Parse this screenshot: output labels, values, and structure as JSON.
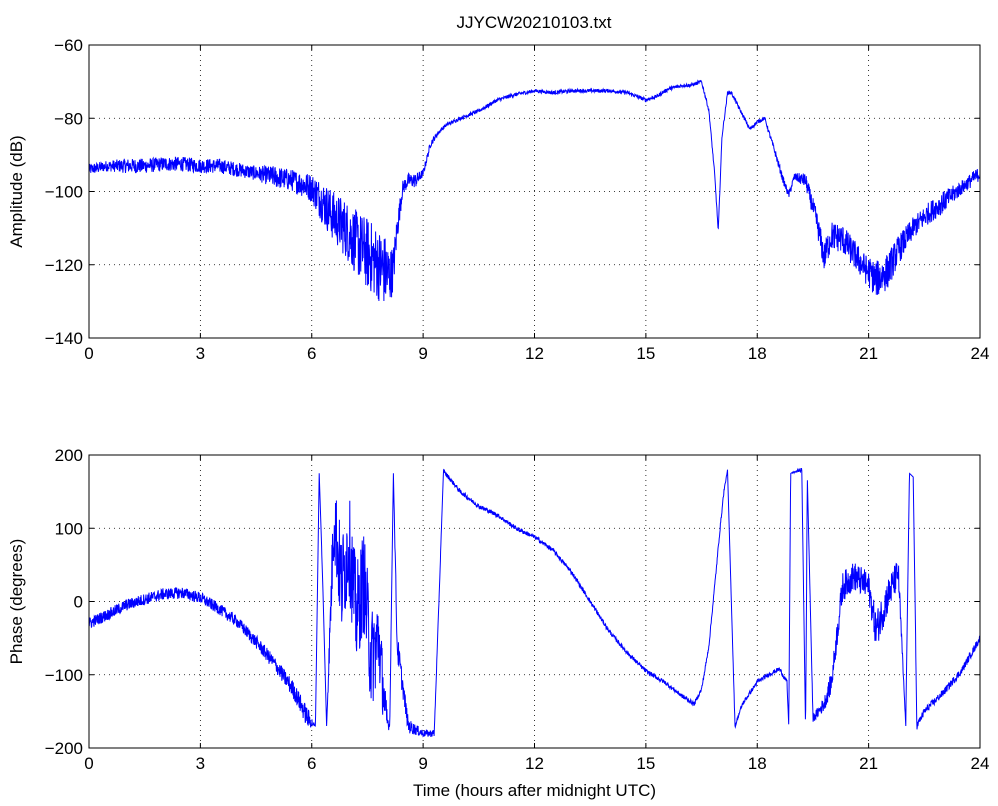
{
  "title": "JJYCW20210103.txt",
  "line_color": "#0000ff",
  "chart_data": [
    {
      "type": "line",
      "title": "JJYCW20210103.txt",
      "xlabel": "",
      "ylabel": "Amplitude (dB)",
      "xlim": [
        0,
        24
      ],
      "ylim": [
        -140,
        -60
      ],
      "xticks": [
        0,
        3,
        6,
        9,
        12,
        15,
        18,
        21,
        24
      ],
      "yticks": [
        -140,
        -120,
        -100,
        -80,
        -60
      ],
      "grid": true,
      "series": [
        {
          "x": [
            0,
            0.5,
            1,
            1.5,
            2,
            2.5,
            3,
            3.5,
            4,
            4.5,
            5,
            5.5,
            6,
            6.3,
            6.6,
            6.9,
            7.2,
            7.5,
            7.8,
            8.0,
            8.1,
            8.2,
            8.3,
            8.45,
            8.6,
            8.8,
            9.0,
            9.2,
            9.4,
            9.6,
            10,
            10.5,
            11,
            11.5,
            12,
            12.5,
            13,
            13.5,
            14,
            14.5,
            15,
            15.3,
            15.6,
            16,
            16.2,
            16.5,
            16.7,
            16.85,
            16.95,
            17.05,
            17.2,
            17.3,
            17.5,
            17.8,
            18,
            18.2,
            18.5,
            18.7,
            18.85,
            19.0,
            19.3,
            19.6,
            19.8,
            20.0,
            20.3,
            20.6,
            20.9,
            21.2,
            21.5,
            21.8,
            22.2,
            22.6,
            23.0,
            23.5,
            24
          ],
          "y": [
            -94,
            -93,
            -93,
            -93,
            -92.5,
            -92.5,
            -93,
            -93,
            -94,
            -95,
            -96,
            -97,
            -99,
            -103,
            -107,
            -110,
            -114,
            -117,
            -120,
            -122,
            -123,
            -121,
            -110,
            -99,
            -97,
            -97,
            -95,
            -87,
            -84,
            -82,
            -80,
            -78,
            -75,
            -73.5,
            -72.5,
            -73,
            -72.5,
            -72.5,
            -72.5,
            -73,
            -75,
            -74,
            -72,
            -71,
            -71,
            -70,
            -78,
            -95,
            -111,
            -85,
            -73,
            -73,
            -77,
            -83,
            -81,
            -80,
            -90,
            -97,
            -101,
            -96,
            -97,
            -108,
            -118,
            -112,
            -113,
            -117,
            -121,
            -124,
            -122,
            -116,
            -110,
            -106,
            -103,
            -99,
            -95
          ],
          "noise": [
            1.5,
            1.5,
            2,
            2,
            2,
            2,
            2,
            2,
            2,
            2,
            3,
            3,
            4,
            6,
            7,
            8,
            9,
            10,
            10,
            10,
            8,
            6,
            4,
            2,
            2,
            2,
            1,
            1,
            0.5,
            0.5,
            0.5,
            0.5,
            0.5,
            0.5,
            0.5,
            0.5,
            0.5,
            0.5,
            0.5,
            0.5,
            0.5,
            0.5,
            0.5,
            0.5,
            0.5,
            0.5,
            0.5,
            0.5,
            0.5,
            0.5,
            0.5,
            0.5,
            0.5,
            0.5,
            0.5,
            0.5,
            1,
            1,
            1,
            1,
            2,
            3,
            4,
            4,
            4,
            4,
            4,
            5,
            5,
            4,
            3,
            3,
            3,
            2,
            2
          ]
        }
      ]
    },
    {
      "type": "line",
      "title": "",
      "xlabel": "Time (hours after midnight UTC)",
      "ylabel": "Phase (degrees)",
      "xlim": [
        0,
        24
      ],
      "ylim": [
        -200,
        200
      ],
      "xticks": [
        0,
        3,
        6,
        9,
        12,
        15,
        18,
        21,
        24
      ],
      "yticks": [
        -200,
        -100,
        0,
        100,
        200
      ],
      "grid": true,
      "series": [
        {
          "x": [
            0,
            0.5,
            1,
            1.5,
            2,
            2.5,
            3,
            3.5,
            4,
            4.5,
            5,
            5.5,
            5.9,
            6.1,
            6.2,
            6.3,
            6.4,
            6.6,
            6.8,
            7.0,
            7.2,
            7.4,
            7.6,
            7.8,
            8.0,
            8.1,
            8.2,
            8.3,
            8.6,
            9.0,
            9.3,
            9.55,
            9.6,
            10,
            10.5,
            11,
            11.5,
            12,
            12.5,
            13,
            13.5,
            14,
            14.5,
            15,
            15.5,
            16,
            16.3,
            16.5,
            16.7,
            17.0,
            17.1,
            17.2,
            17.4,
            17.6,
            18,
            18.3,
            18.6,
            18.8,
            18.85,
            18.9,
            19.2,
            19.3,
            19.35,
            19.5,
            19.8,
            20.0,
            20.3,
            20.6,
            21.0,
            21.2,
            21.5,
            21.8,
            22.0,
            22.1,
            22.2,
            22.3,
            22.5,
            23.0,
            23.5,
            24
          ],
          "y": [
            -30,
            -18,
            -5,
            3,
            10,
            12,
            5,
            -10,
            -28,
            -55,
            -85,
            -120,
            -160,
            -170,
            175,
            20,
            -170,
            120,
            20,
            80,
            -20,
            30,
            -80,
            -50,
            -160,
            -170,
            175,
            -60,
            -170,
            -180,
            -180,
            180,
            175,
            150,
            130,
            118,
            100,
            88,
            70,
            40,
            0,
            -40,
            -70,
            -95,
            -110,
            -130,
            -140,
            -120,
            -60,
            100,
            150,
            180,
            -170,
            -140,
            -110,
            -100,
            -92,
            -110,
            -170,
            175,
            180,
            -175,
            170,
            -160,
            -140,
            -110,
            20,
            35,
            20,
            -40,
            5,
            40,
            -170,
            175,
            170,
            -170,
            -150,
            -125,
            -95,
            -50
          ],
          "noise": [
            8,
            8,
            8,
            8,
            8,
            8,
            8,
            8,
            8,
            9,
            10,
            12,
            14,
            0,
            0,
            0,
            0,
            60,
            70,
            70,
            70,
            70,
            70,
            60,
            30,
            0,
            0,
            20,
            10,
            5,
            5,
            0,
            3,
            3,
            3,
            3,
            3,
            3,
            3,
            3,
            3,
            3,
            3,
            3,
            3,
            3,
            3,
            3,
            3,
            3,
            3,
            0,
            3,
            3,
            3,
            3,
            3,
            3,
            0,
            0,
            3,
            0,
            0,
            5,
            10,
            15,
            20,
            20,
            20,
            25,
            25,
            20,
            0,
            0,
            0,
            5,
            5,
            5,
            5,
            5
          ]
        }
      ]
    }
  ]
}
